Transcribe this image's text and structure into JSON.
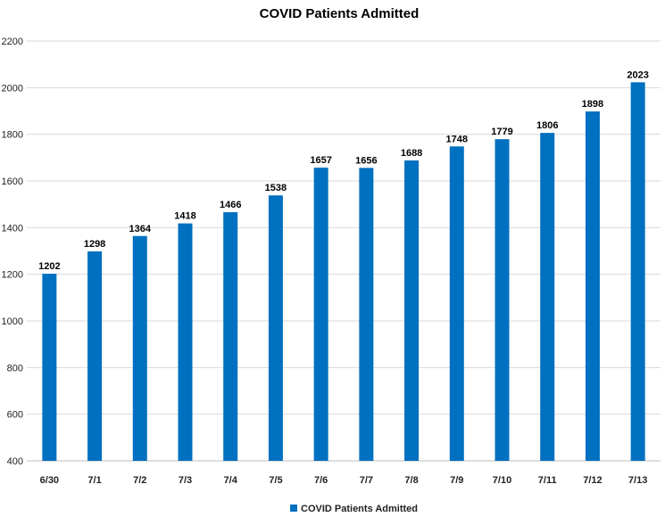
{
  "chart_data": {
    "type": "bar",
    "title": "COVID Patients Admitted",
    "xlabel": "",
    "ylabel": "",
    "categories": [
      "6/30",
      "7/1",
      "7/2",
      "7/3",
      "7/4",
      "7/5",
      "7/6",
      "7/7",
      "7/8",
      "7/9",
      "7/10",
      "7/11",
      "7/12",
      "7/13"
    ],
    "series": [
      {
        "name": "COVID Patients Admitted",
        "color": "#0070c0",
        "values": [
          1202,
          1298,
          1364,
          1418,
          1466,
          1538,
          1657,
          1656,
          1688,
          1748,
          1779,
          1806,
          1898,
          2023
        ],
        "data_labels": [
          "1202",
          "1298",
          "1364",
          "1418",
          "1466",
          "1538",
          "1657",
          "1656",
          "1688",
          "1748",
          "1779",
          "1806",
          "1898",
          "2023"
        ]
      }
    ],
    "ylim": [
      400,
      2200
    ],
    "yticks": [
      400,
      600,
      800,
      1000,
      1200,
      1400,
      1600,
      1800,
      2000,
      2200
    ],
    "ytick_labels": [
      "400",
      "600",
      "800",
      "1000",
      "1200",
      "1400",
      "1600",
      "1800",
      "2000",
      "2200"
    ],
    "grid": true,
    "legend": "bottom"
  }
}
